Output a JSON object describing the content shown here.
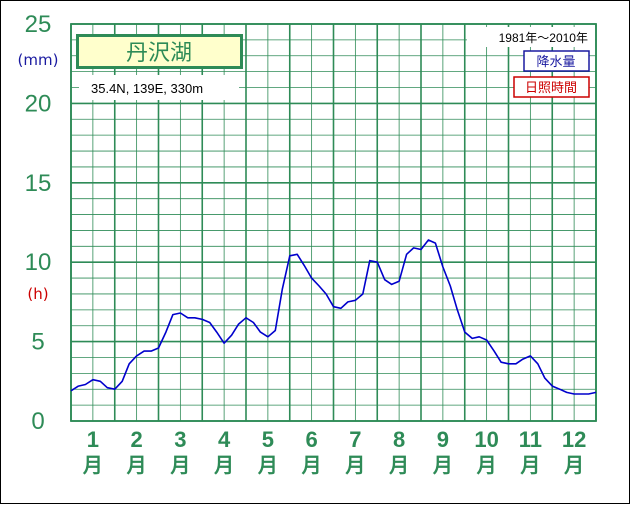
{
  "chart_data": {
    "type": "line",
    "title": "丹沢湖",
    "location": "35.4N,  139E,  330m",
    "period": "1981年〜2010年",
    "legend": {
      "precipitation": "降水量",
      "sunshine": "日照時間"
    },
    "units": {
      "precipitation": "(mm)",
      "sunshine": "(h)"
    },
    "y_ticks": [
      "0",
      "5",
      "10",
      "15",
      "20",
      "25"
    ],
    "ylim": [
      0,
      25
    ],
    "xlim": [
      0,
      12
    ],
    "months": [
      "1",
      "2",
      "3",
      "4",
      "5",
      "6",
      "7",
      "8",
      "9",
      "10",
      "11",
      "12"
    ],
    "month_suffix": "月",
    "colors": {
      "grid": "#2e8b57",
      "line": "#0000cc",
      "title_bg": "#ffffcc"
    },
    "series": [
      {
        "x": [
          0.0,
          0.17,
          0.33,
          0.5,
          0.67,
          0.83,
          1.0,
          1.17,
          1.33,
          1.5,
          1.67,
          1.83,
          2.0,
          2.17,
          2.33,
          2.5,
          2.67,
          2.83,
          3.0,
          3.17,
          3.33,
          3.5,
          3.67,
          3.83,
          4.0,
          4.17,
          4.33,
          4.5,
          4.67,
          4.83,
          5.0,
          5.17,
          5.33,
          5.5,
          5.67,
          5.83,
          6.0,
          6.17,
          6.33,
          6.5,
          6.67,
          6.83,
          7.0,
          7.17,
          7.33,
          7.5,
          7.67,
          7.83,
          8.0,
          8.17,
          8.33,
          8.5,
          8.67,
          8.83,
          9.0,
          9.17,
          9.33,
          9.5,
          9.67,
          9.83,
          10.0,
          10.17,
          10.33,
          10.5,
          10.67,
          10.83,
          11.0,
          11.17,
          11.33,
          11.5,
          11.67,
          11.83,
          12.0
        ],
        "y": [
          1.9,
          2.2,
          2.3,
          2.6,
          2.5,
          2.1,
          2.0,
          2.5,
          3.6,
          4.1,
          4.4,
          4.4,
          4.6,
          5.6,
          6.7,
          6.8,
          6.5,
          6.5,
          6.4,
          6.2,
          5.6,
          4.9,
          5.4,
          6.1,
          6.5,
          6.2,
          5.6,
          5.3,
          5.7,
          8.3,
          10.4,
          10.5,
          9.8,
          9.0,
          8.5,
          8.0,
          7.2,
          7.1,
          7.5,
          7.6,
          8.0,
          10.1,
          10.0,
          8.9,
          8.6,
          8.8,
          10.5,
          10.9,
          10.8,
          11.4,
          11.2,
          9.7,
          8.5,
          7.0,
          5.6,
          5.2,
          5.3,
          5.1,
          4.4,
          3.7,
          3.6,
          3.6,
          3.9,
          4.1,
          3.6,
          2.7,
          2.2,
          2.0,
          1.8,
          1.7,
          1.7,
          1.7,
          1.8
        ]
      }
    ]
  }
}
